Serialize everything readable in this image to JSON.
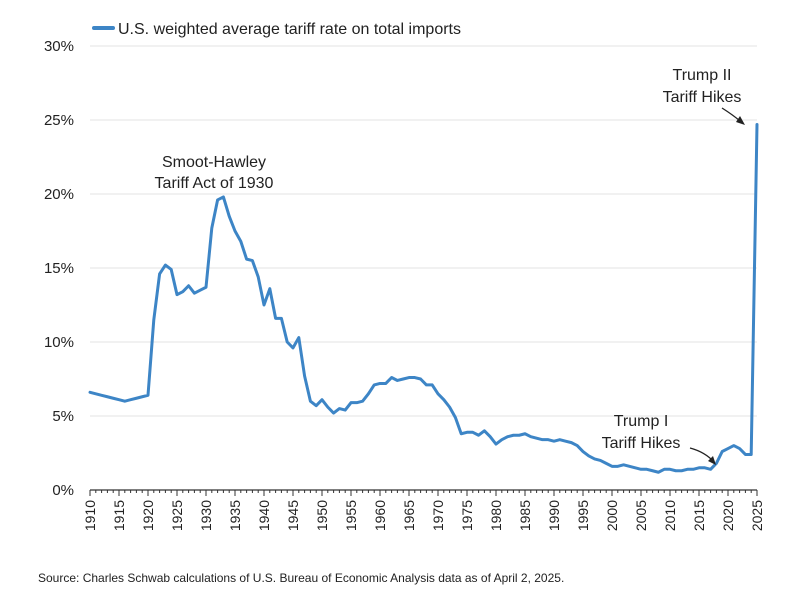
{
  "chart_data": {
    "type": "line",
    "title": "",
    "xlabel": "",
    "ylabel": "",
    "xlim": [
      1910,
      2025
    ],
    "ylim": [
      0,
      30
    ],
    "y_ticks": [
      "0%",
      "5%",
      "10%",
      "15%",
      "20%",
      "25%",
      "30%"
    ],
    "x_ticks": [
      "1910",
      "1915",
      "1920",
      "1925",
      "1930",
      "1935",
      "1940",
      "1945",
      "1950",
      "1955",
      "1960",
      "1965",
      "1970",
      "1975",
      "1980",
      "1985",
      "1990",
      "1995",
      "2000",
      "2005",
      "2010",
      "2015",
      "2020",
      "2025"
    ],
    "grid": "horizontal",
    "legend_position": "top-left",
    "series": [
      {
        "name": "U.S. weighted average tariff rate on total imports",
        "color": "#3d85c6",
        "x": [
          1910,
          1911,
          1912,
          1913,
          1914,
          1915,
          1916,
          1917,
          1918,
          1919,
          1920,
          1921,
          1922,
          1923,
          1924,
          1925,
          1926,
          1927,
          1928,
          1929,
          1930,
          1931,
          1932,
          1933,
          1934,
          1935,
          1936,
          1937,
          1938,
          1939,
          1940,
          1941,
          1942,
          1943,
          1944,
          1945,
          1946,
          1947,
          1948,
          1949,
          1950,
          1951,
          1952,
          1953,
          1954,
          1955,
          1956,
          1957,
          1958,
          1959,
          1960,
          1961,
          1962,
          1963,
          1964,
          1965,
          1966,
          1967,
          1968,
          1969,
          1970,
          1971,
          1972,
          1973,
          1974,
          1975,
          1976,
          1977,
          1978,
          1979,
          1980,
          1981,
          1982,
          1983,
          1984,
          1985,
          1986,
          1987,
          1988,
          1989,
          1990,
          1991,
          1992,
          1993,
          1994,
          1995,
          1996,
          1997,
          1998,
          1999,
          2000,
          2001,
          2002,
          2003,
          2004,
          2005,
          2006,
          2007,
          2008,
          2009,
          2010,
          2011,
          2012,
          2013,
          2014,
          2015,
          2016,
          2017,
          2018,
          2019,
          2020,
          2021,
          2022,
          2023,
          2024,
          2025
        ],
        "values": [
          6.6,
          6.5,
          6.4,
          6.3,
          6.2,
          6.1,
          6.0,
          6.1,
          6.2,
          6.3,
          6.4,
          11.5,
          14.6,
          15.2,
          14.9,
          13.2,
          13.4,
          13.8,
          13.3,
          13.5,
          13.7,
          17.7,
          19.6,
          19.8,
          18.5,
          17.5,
          16.8,
          15.6,
          15.5,
          14.4,
          12.5,
          13.6,
          11.6,
          11.6,
          10.0,
          9.6,
          10.3,
          7.7,
          6.0,
          5.7,
          6.1,
          5.6,
          5.2,
          5.5,
          5.4,
          5.9,
          5.9,
          6.0,
          6.5,
          7.1,
          7.2,
          7.2,
          7.6,
          7.4,
          7.5,
          7.6,
          7.6,
          7.5,
          7.1,
          7.1,
          6.5,
          6.1,
          5.6,
          4.9,
          3.8,
          3.9,
          3.9,
          3.7,
          4.0,
          3.6,
          3.1,
          3.4,
          3.6,
          3.7,
          3.7,
          3.8,
          3.6,
          3.5,
          3.4,
          3.4,
          3.3,
          3.4,
          3.3,
          3.2,
          3.0,
          2.6,
          2.3,
          2.1,
          2.0,
          1.8,
          1.6,
          1.6,
          1.7,
          1.6,
          1.5,
          1.4,
          1.4,
          1.3,
          1.2,
          1.4,
          1.4,
          1.3,
          1.3,
          1.4,
          1.4,
          1.5,
          1.5,
          1.4,
          1.8,
          2.6,
          2.8,
          3.0,
          2.8,
          2.4,
          2.4,
          24.7
        ]
      }
    ],
    "annotations": [
      {
        "lines": [
          "Smoot-Hawley",
          "Tariff Act of 1930"
        ]
      },
      {
        "lines": [
          "Trump I",
          "Tariff Hikes"
        ]
      },
      {
        "lines": [
          "Trump II",
          "Tariff Hikes"
        ]
      }
    ]
  },
  "source_note": "Source: Charles Schwab calculations of U.S. Bureau of Economic Analysis data as of April 2, 2025."
}
